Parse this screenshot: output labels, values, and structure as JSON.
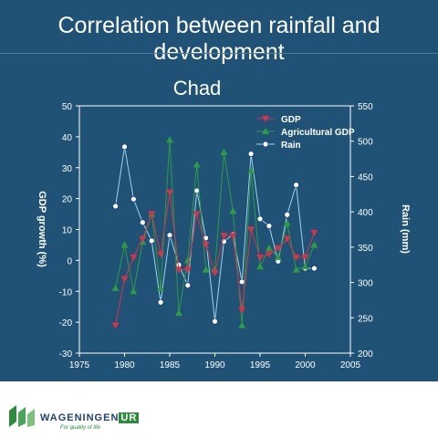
{
  "slide": {
    "title": "Correlation between rainfall and development"
  },
  "footer": {
    "logo_main": "WAGENINGEN",
    "logo_ur": "UR",
    "tagline": "For quality of life"
  },
  "colors": {
    "background": "#1f5275",
    "gdp": "#d6334a",
    "agri": "#2f9b45",
    "rain": "#9ed4f0"
  },
  "chart_data": {
    "type": "line",
    "title": "Chad",
    "xlabel": "",
    "ylabel": "GDP growth (%)",
    "y2label": "Rain (mm)",
    "xlim": [
      1975,
      2005
    ],
    "ylim": [
      -30,
      50
    ],
    "y2lim": [
      200,
      550
    ],
    "xticks": [
      1975,
      1980,
      1985,
      1990,
      1995,
      2000,
      2005
    ],
    "yticks": [
      -30,
      -20,
      -10,
      0,
      10,
      20,
      30,
      40,
      50
    ],
    "y2ticks": [
      200,
      250,
      300,
      350,
      400,
      450,
      500,
      550
    ],
    "legend_position": "top-right",
    "series": [
      {
        "name": "GDP",
        "axis": "left",
        "marker": "triangle-down",
        "color": "#d6334a",
        "x": [
          1979,
          1980,
          1981,
          1982,
          1983,
          1984,
          1985,
          1986,
          1987,
          1988,
          1989,
          1990,
          1991,
          1992,
          1993,
          1994,
          1995,
          1996,
          1997,
          1998,
          1999,
          2000,
          2001
        ],
        "y": [
          -21,
          -6,
          1,
          7,
          15,
          2,
          22,
          -3,
          -3,
          15,
          5,
          -4,
          8,
          8,
          -16,
          10,
          1,
          2,
          4,
          7,
          1,
          1,
          9
        ]
      },
      {
        "name": "Agricultural GDP",
        "axis": "left",
        "marker": "triangle-up",
        "color": "#2f9b45",
        "x": [
          1979,
          1980,
          1981,
          1982,
          1983,
          1984,
          1985,
          1986,
          1987,
          1988,
          1989,
          1990,
          1991,
          1992,
          1993,
          1994,
          1995,
          1996,
          1997,
          1998,
          1999,
          2000,
          2001
        ],
        "y": [
          -9,
          5,
          -10,
          6,
          15,
          -9,
          39,
          -17,
          0,
          31,
          -3,
          -3,
          35,
          16,
          -21,
          29,
          -2,
          4,
          1,
          12,
          -3,
          -2,
          5
        ]
      },
      {
        "name": "Rain",
        "axis": "right",
        "marker": "circle",
        "color": "#9ed4f0",
        "x": [
          1979,
          1980,
          1981,
          1982,
          1983,
          1984,
          1985,
          1986,
          1987,
          1988,
          1989,
          1990,
          1991,
          1992,
          1993,
          1994,
          1995,
          1996,
          1997,
          1998,
          1999,
          2000,
          2001
        ],
        "y": [
          408,
          492,
          418,
          385,
          359,
          272,
          367,
          325,
          296,
          430,
          363,
          245,
          358,
          368,
          301,
          482,
          390,
          380,
          330,
          396,
          438,
          320,
          320
        ]
      }
    ]
  }
}
